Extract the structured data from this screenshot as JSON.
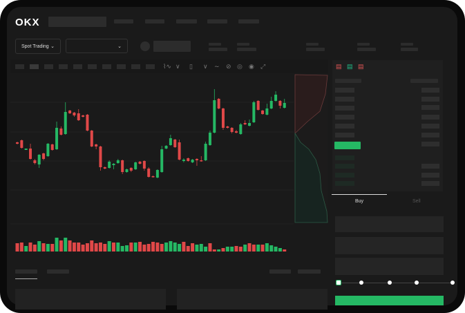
{
  "header": {
    "logo": "OKX"
  },
  "market_selector": {
    "mode_label": "Spot Trading",
    "mode_icon": "chevron-down-icon",
    "pair_icon": "chevron-down-icon"
  },
  "colors": {
    "up": "#25b864",
    "down": "#e04848",
    "background": "#1a1a1a",
    "placeholder": "#2c2c2c"
  },
  "order_form": {
    "tabs": [
      {
        "label": "Buy",
        "active": true
      },
      {
        "label": "Sell",
        "active": false
      }
    ],
    "slider_level_percent": 0,
    "slider_stops": 5
  },
  "chart_data": {
    "type": "candlestick",
    "note_axes": "none printed",
    "candles": [
      [
        94,
        95,
        91,
        92
      ],
      [
        97,
        98,
        85,
        86
      ],
      [
        83,
        85,
        83,
        85
      ],
      [
        85,
        92,
        69,
        70
      ],
      [
        68,
        70,
        62,
        64
      ],
      [
        62,
        77,
        57,
        76
      ],
      [
        78,
        79,
        68,
        70
      ],
      [
        74,
        93,
        73,
        92
      ],
      [
        91,
        92,
        82,
        83
      ],
      [
        84,
        124,
        83,
        115
      ],
      [
        114,
        117,
        104,
        105
      ],
      [
        106,
        152,
        105,
        138
      ],
      [
        140,
        141,
        135,
        136
      ],
      [
        137,
        138,
        131,
        133
      ],
      [
        136,
        142,
        125,
        126
      ],
      [
        133,
        134,
        130,
        131
      ],
      [
        134,
        135,
        110,
        111
      ],
      [
        111,
        112,
        87,
        88
      ],
      [
        91,
        92,
        84,
        88
      ],
      [
        88,
        89,
        53,
        58
      ],
      [
        58,
        59,
        55,
        56
      ],
      [
        57,
        68,
        56,
        66
      ],
      [
        61,
        64,
        55,
        63
      ],
      [
        64,
        70,
        63,
        68
      ],
      [
        68,
        69,
        48,
        51
      ],
      [
        51,
        56,
        50,
        55
      ],
      [
        57,
        58,
        51,
        53
      ],
      [
        55,
        66,
        54,
        65
      ],
      [
        66,
        67,
        62,
        63
      ],
      [
        67,
        68,
        53,
        56
      ],
      [
        56,
        58,
        43,
        44
      ],
      [
        45,
        46,
        43,
        44
      ],
      [
        43,
        55,
        42,
        54
      ],
      [
        51,
        89,
        50,
        84
      ],
      [
        85,
        90,
        84,
        89
      ],
      [
        90,
        105,
        89,
        100
      ],
      [
        98,
        99,
        86,
        87
      ],
      [
        94,
        98,
        68,
        69
      ],
      [
        67,
        71,
        65,
        69
      ],
      [
        71,
        72,
        66,
        67
      ],
      [
        65,
        70,
        64,
        69
      ],
      [
        70,
        71,
        60,
        68
      ],
      [
        68,
        74,
        66,
        67
      ],
      [
        68,
        95,
        67,
        92
      ],
      [
        90,
        111,
        89,
        108
      ],
      [
        108,
        171,
        107,
        155
      ],
      [
        157,
        158,
        142,
        143
      ],
      [
        143,
        144,
        112,
        115
      ],
      [
        117,
        118,
        114,
        115
      ],
      [
        115,
        116,
        107,
        109
      ],
      [
        110,
        112,
        107,
        108
      ],
      [
        106,
        122,
        105,
        120
      ],
      [
        122,
        126,
        119,
        120
      ],
      [
        118,
        127,
        117,
        122
      ],
      [
        123,
        154,
        122,
        152
      ],
      [
        154,
        155,
        140,
        141
      ],
      [
        140,
        141,
        134,
        135
      ],
      [
        134,
        150,
        133,
        143
      ],
      [
        143,
        160,
        142,
        154
      ],
      [
        154,
        168,
        153,
        163
      ],
      [
        154,
        155,
        143,
        147
      ],
      [
        144,
        157,
        143,
        151
      ]
    ],
    "candle_fields": [
      "open",
      "high",
      "low",
      "close"
    ],
    "volume": [
      [
        12,
        "down"
      ],
      [
        13,
        "down"
      ],
      [
        8,
        "up"
      ],
      [
        13,
        "down"
      ],
      [
        10,
        "down"
      ],
      [
        15,
        "up"
      ],
      [
        12,
        "down"
      ],
      [
        11,
        "up"
      ],
      [
        11,
        "down"
      ],
      [
        20,
        "up"
      ],
      [
        16,
        "down"
      ],
      [
        20,
        "up"
      ],
      [
        16,
        "down"
      ],
      [
        13,
        "down"
      ],
      [
        13,
        "down"
      ],
      [
        10,
        "down"
      ],
      [
        12,
        "down"
      ],
      [
        16,
        "down"
      ],
      [
        12,
        "down"
      ],
      [
        13,
        "down"
      ],
      [
        11,
        "down"
      ],
      [
        15,
        "up"
      ],
      [
        13,
        "down"
      ],
      [
        13,
        "up"
      ],
      [
        8,
        "up"
      ],
      [
        9,
        "up"
      ],
      [
        13,
        "down"
      ],
      [
        13,
        "up"
      ],
      [
        14,
        "down"
      ],
      [
        10,
        "down"
      ],
      [
        11,
        "down"
      ],
      [
        14,
        "down"
      ],
      [
        13,
        "down"
      ],
      [
        11,
        "down"
      ],
      [
        13,
        "up"
      ],
      [
        15,
        "up"
      ],
      [
        13,
        "up"
      ],
      [
        11,
        "up"
      ],
      [
        14,
        "down"
      ],
      [
        8,
        "down"
      ],
      [
        12,
        "down"
      ],
      [
        10,
        "up"
      ],
      [
        11,
        "up"
      ],
      [
        7,
        "up"
      ],
      [
        12,
        "down"
      ],
      [
        3,
        "down"
      ],
      [
        3,
        "up"
      ],
      [
        5,
        "down"
      ],
      [
        7,
        "up"
      ],
      [
        7,
        "up"
      ],
      [
        8,
        "down"
      ],
      [
        7,
        "down"
      ],
      [
        10,
        "up"
      ],
      [
        12,
        "down"
      ],
      [
        10,
        "down"
      ],
      [
        10,
        "up"
      ],
      [
        10,
        "down"
      ],
      [
        12,
        "up"
      ],
      [
        9,
        "up"
      ],
      [
        7,
        "up"
      ],
      [
        5,
        "up"
      ],
      [
        3,
        "down"
      ]
    ],
    "grid": true
  }
}
